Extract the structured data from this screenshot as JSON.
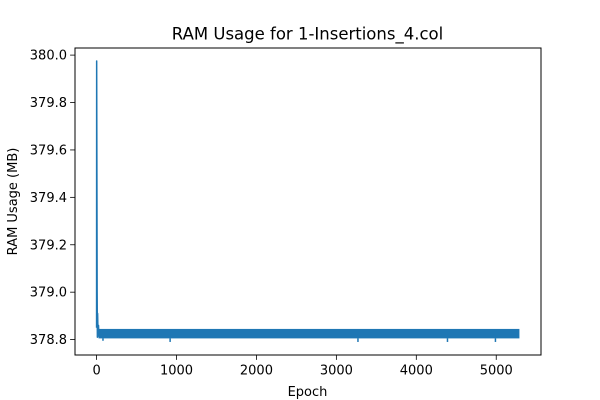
{
  "chart_data": {
    "type": "line",
    "title": "RAM Usage for 1-Insertions_4.col",
    "xlabel": "Epoch",
    "ylabel": "RAM Usage (MB)",
    "xlim": [
      -270,
      5560
    ],
    "ylim": [
      378.735,
      380.03
    ],
    "x_ticks": [
      0,
      1000,
      2000,
      3000,
      4000,
      5000
    ],
    "y_ticks": [
      378.8,
      379.0,
      379.2,
      379.4,
      379.6,
      379.8,
      380.0
    ],
    "x_tick_labels": [
      "0",
      "1000",
      "2000",
      "3000",
      "4000",
      "5000"
    ],
    "y_tick_labels": [
      "378.8",
      "379.0",
      "379.2",
      "379.4",
      "379.6",
      "379.8",
      "380.0"
    ],
    "grid": false,
    "series": [
      {
        "color": "#1f77b4",
        "x_start": 0,
        "x_end": 5290,
        "points": [
          [
            0,
            378.85
          ],
          [
            1,
            379.975
          ],
          [
            4,
            379.5
          ],
          [
            7,
            379.0
          ],
          [
            10,
            378.81
          ],
          [
            13,
            378.91
          ],
          [
            18,
            378.82
          ],
          [
            24,
            378.86
          ],
          [
            30,
            378.81
          ]
        ],
        "steady_low": 378.805,
        "steady_high": 378.845,
        "dips": [
          [
            80,
            378.795
          ],
          [
            920,
            378.79
          ],
          [
            3270,
            378.79
          ],
          [
            4390,
            378.79
          ],
          [
            4990,
            378.79
          ]
        ]
      }
    ]
  }
}
